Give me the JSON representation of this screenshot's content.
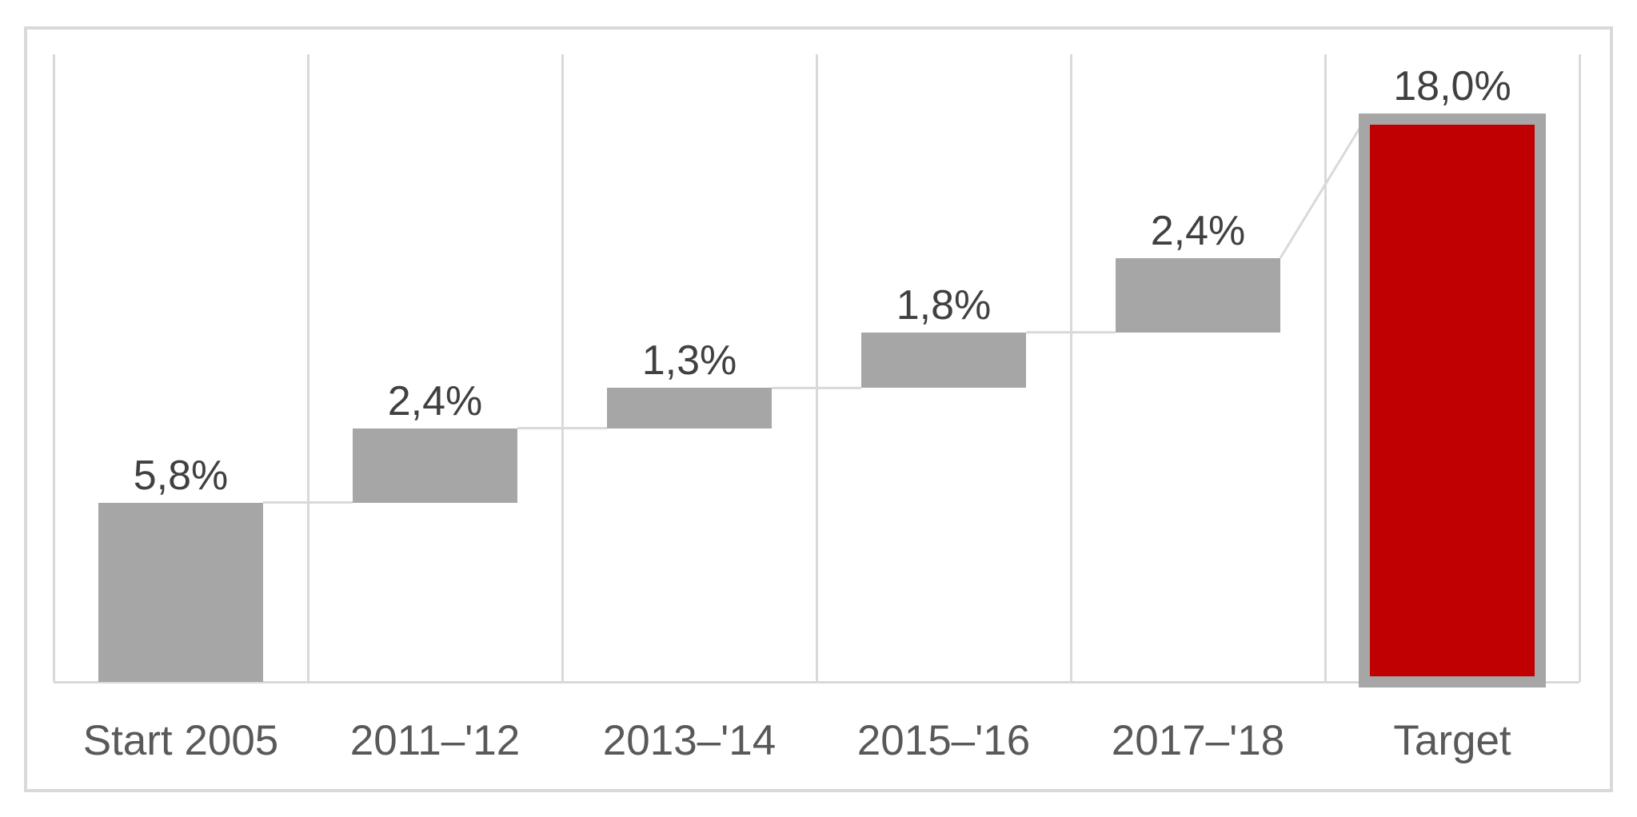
{
  "page": {
    "background": "#ffffff",
    "description": "Waterfall chart of cumulative percentage progress toward a target"
  },
  "chart_data": {
    "type": "bar",
    "subtype": "waterfall",
    "title": "",
    "xlabel": "",
    "ylabel": "",
    "legend": "none",
    "grid": "vertical-category-gridlines-only",
    "value_axis_visible": false,
    "ylim": [
      0,
      19.5
    ],
    "decimal_separator": ",",
    "categories": [
      "Start 2005",
      "2011–'12",
      "2013–'14",
      "2015–'16",
      "2017–'18",
      "Target"
    ],
    "series": [
      {
        "name": "Progress",
        "points": [
          {
            "category": "Start 2005",
            "value": 5.8,
            "label": "5,8%",
            "role": "increment",
            "cumulative_start": 0.0,
            "cumulative_end": 5.8
          },
          {
            "category": "2011–'12",
            "value": 2.4,
            "label": "2,4%",
            "role": "increment",
            "cumulative_start": 5.8,
            "cumulative_end": 8.2
          },
          {
            "category": "2013–'14",
            "value": 1.3,
            "label": "1,3%",
            "role": "increment",
            "cumulative_start": 8.2,
            "cumulative_end": 9.5
          },
          {
            "category": "2015–'16",
            "value": 1.8,
            "label": "1,8%",
            "role": "increment",
            "cumulative_start": 9.5,
            "cumulative_end": 11.3
          },
          {
            "category": "2017–'18",
            "value": 2.4,
            "label": "2,4%",
            "role": "increment",
            "cumulative_start": 11.3,
            "cumulative_end": 13.7
          },
          {
            "category": "Target",
            "value": 18.0,
            "label": "18,0%",
            "role": "total",
            "cumulative_start": 0.0,
            "cumulative_end": 18.0
          }
        ]
      }
    ],
    "connectors": "step-connectors-between-bars, diagonal connector from last increment to target total",
    "colors": {
      "increment_fill": "#a6a6a6",
      "total_fill": "#c00000",
      "total_border": "#a6a6a6",
      "gridline": "#d9d9d9",
      "axis_line": "#d9d9d9",
      "connector": "#d9d9d9",
      "data_label": "#404040",
      "category_label": "#595959",
      "frame_border": "#d9d9d9"
    }
  }
}
